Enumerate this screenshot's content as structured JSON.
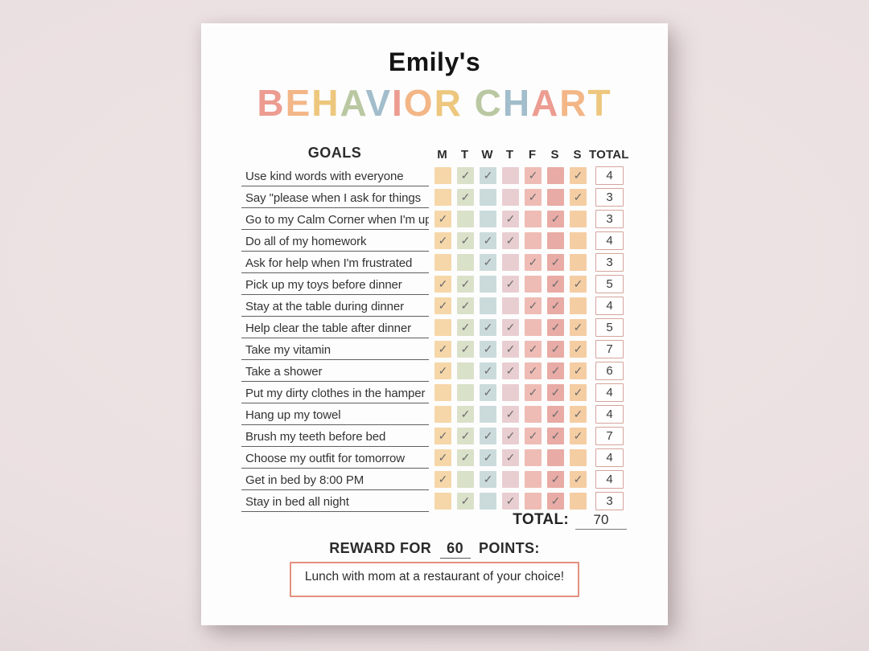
{
  "header": {
    "owner_title": "Emily's",
    "title_letters": [
      {
        "ch": "B",
        "color": "#ec9c91"
      },
      {
        "ch": "E",
        "color": "#f3b687"
      },
      {
        "ch": "H",
        "color": "#edc77d"
      },
      {
        "ch": "A",
        "color": "#bac8a2"
      },
      {
        "ch": "V",
        "color": "#a2bdcb"
      },
      {
        "ch": "I",
        "color": "#ec9c91"
      },
      {
        "ch": "O",
        "color": "#f3b687"
      },
      {
        "ch": "R",
        "color": "#edc77d"
      },
      {
        "ch": " ",
        "color": ""
      },
      {
        "ch": "C",
        "color": "#bac8a2"
      },
      {
        "ch": "H",
        "color": "#a2bdcb"
      },
      {
        "ch": "A",
        "color": "#ec9c91"
      },
      {
        "ch": "R",
        "color": "#f3b687"
      },
      {
        "ch": "T",
        "color": "#edc77d"
      }
    ]
  },
  "table": {
    "goals_header": "GOALS",
    "day_headers": [
      "M",
      "T",
      "W",
      "T",
      "F",
      "S",
      "S"
    ],
    "total_header": "TOTAL",
    "day_colors": [
      "#f6d7a9",
      "#dae1c9",
      "#cbdbdb",
      "#e9ced1",
      "#efbcb5",
      "#e8aba5",
      "#f5cda3"
    ],
    "check_glyph": "✓",
    "rows": [
      {
        "goal": "Use kind words with everyone",
        "checks": [
          0,
          1,
          1,
          0,
          1,
          0,
          1
        ],
        "total": "4"
      },
      {
        "goal": "Say \"please when I ask for things",
        "checks": [
          0,
          1,
          0,
          0,
          1,
          0,
          1
        ],
        "total": "3"
      },
      {
        "goal": "Go to my Calm Corner when I'm upset",
        "checks": [
          1,
          0,
          0,
          1,
          0,
          1,
          0
        ],
        "total": "3"
      },
      {
        "goal": "Do all of my homework",
        "checks": [
          1,
          1,
          1,
          1,
          0,
          0,
          0
        ],
        "total": "4"
      },
      {
        "goal": "Ask for help when I'm frustrated",
        "checks": [
          0,
          0,
          1,
          0,
          1,
          1,
          0
        ],
        "total": "3"
      },
      {
        "goal": "Pick up my toys before dinner",
        "checks": [
          1,
          1,
          0,
          1,
          0,
          1,
          1
        ],
        "total": "5"
      },
      {
        "goal": "Stay at the table during dinner",
        "checks": [
          1,
          1,
          0,
          0,
          1,
          1,
          0
        ],
        "total": "4"
      },
      {
        "goal": "Help clear the table after dinner",
        "checks": [
          0,
          1,
          1,
          1,
          0,
          1,
          1
        ],
        "total": "5"
      },
      {
        "goal": "Take my vitamin",
        "checks": [
          1,
          1,
          1,
          1,
          1,
          1,
          1
        ],
        "total": "7"
      },
      {
        "goal": "Take a shower",
        "checks": [
          1,
          0,
          1,
          1,
          1,
          1,
          1
        ],
        "total": "6"
      },
      {
        "goal": "Put my dirty clothes in the hamper",
        "checks": [
          0,
          0,
          1,
          0,
          1,
          1,
          1
        ],
        "total": "4"
      },
      {
        "goal": "Hang up my towel",
        "checks": [
          0,
          1,
          0,
          1,
          0,
          1,
          1
        ],
        "total": "4"
      },
      {
        "goal": "Brush my teeth before bed",
        "checks": [
          1,
          1,
          1,
          1,
          1,
          1,
          1
        ],
        "total": "7"
      },
      {
        "goal": "Choose my outfit for tomorrow",
        "checks": [
          1,
          1,
          1,
          1,
          0,
          0,
          0
        ],
        "total": "4"
      },
      {
        "goal": "Get in bed by 8:00 PM",
        "checks": [
          1,
          0,
          1,
          0,
          0,
          1,
          1
        ],
        "total": "4"
      },
      {
        "goal": "Stay in bed all night",
        "checks": [
          0,
          1,
          0,
          1,
          0,
          1,
          0
        ],
        "total": "3"
      }
    ],
    "grand_total_label": "TOTAL:",
    "grand_total_value": "70"
  },
  "reward": {
    "heading_prefix": "REWARD FOR",
    "points_value": "60",
    "heading_suffix": "POINTS:",
    "reward_text": "Lunch with mom at a restaurant of your choice!"
  },
  "colors": {
    "background": "#ebe0e1",
    "paper": "#fdfdfd",
    "check_mark": "#6c6c6c",
    "goal_underline": "#606060",
    "total_box_border": "#d5a49d",
    "reward_box_border": "#e3907f",
    "heading_text": "#141414"
  }
}
